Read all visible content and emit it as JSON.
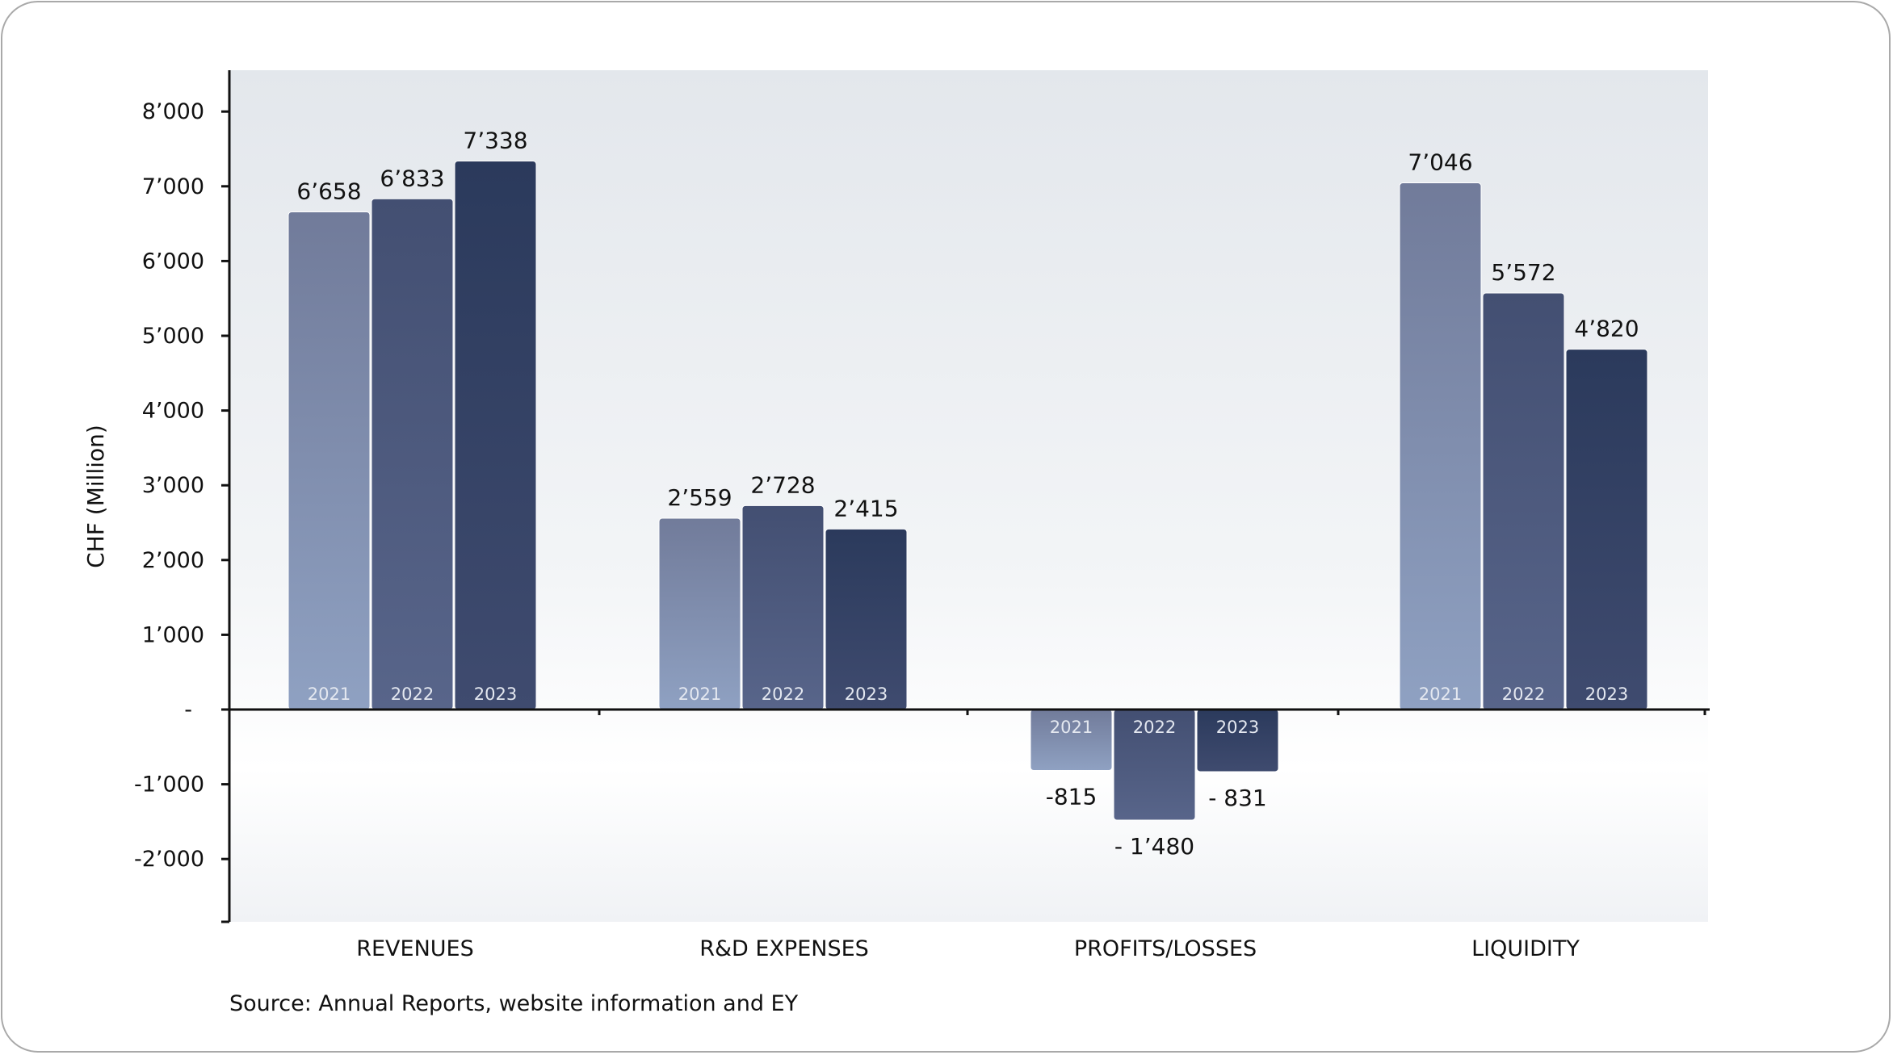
{
  "chart_data": {
    "type": "bar",
    "ylabel": "CHF (Million)",
    "xlabel": "",
    "ylim": [
      -2800,
      8500
    ],
    "yticks": [
      {
        "value": 8000,
        "label": "8’000"
      },
      {
        "value": 7000,
        "label": "7’000"
      },
      {
        "value": 6000,
        "label": "6’000"
      },
      {
        "value": 5000,
        "label": "5’000"
      },
      {
        "value": 4000,
        "label": "4’000"
      },
      {
        "value": 3000,
        "label": "3’000"
      },
      {
        "value": 2000,
        "label": "2’000"
      },
      {
        "value": 1000,
        "label": "1’000"
      },
      {
        "value": 0,
        "label": "-"
      },
      {
        "value": -1000,
        "label": "-1’000"
      },
      {
        "value": -2000,
        "label": "-2’000"
      }
    ],
    "categories": [
      "REVENUES",
      "R&D EXPENSES",
      "PROFITS/LOSSES",
      "LIQUIDITY"
    ],
    "series": [
      {
        "name": "2021",
        "values": [
          6658,
          2559,
          -815,
          7046
        ],
        "labels": [
          "6’658",
          "2’559",
          "-815",
          "7’046"
        ]
      },
      {
        "name": "2022",
        "values": [
          6833,
          2728,
          -1480,
          5572
        ],
        "labels": [
          "6’833",
          "2’728",
          "- 1’480",
          "5’572"
        ]
      },
      {
        "name": "2023",
        "values": [
          7338,
          2415,
          -831,
          4820
        ],
        "labels": [
          "7’338",
          "2’415",
          "- 831",
          "4’820"
        ]
      }
    ],
    "grid": false,
    "legend": "none"
  },
  "colors": {
    "2021": [
      "#717b9a",
      "#8fa1c2"
    ],
    "2022": [
      "#434f72",
      "#58658a"
    ],
    "2023": [
      "#2b3a5c",
      "#3f4b6f"
    ],
    "background_top": "#e6e9ee",
    "background_bottom": "#ffffff"
  },
  "source": "Source: Annual Reports, website information and EY"
}
